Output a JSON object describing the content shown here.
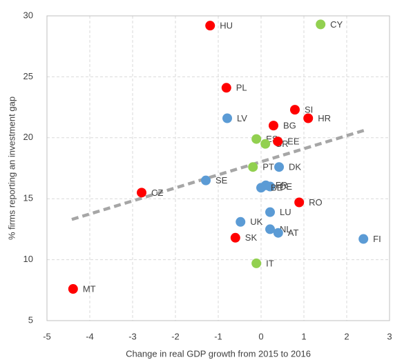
{
  "chart_data": {
    "type": "scatter",
    "x_label": "Change in real GDP growth from 2015 to 2016",
    "y_label": "% firms reporting an investment gap",
    "xlim": [
      -5,
      3
    ],
    "xticks": [
      -5,
      -4,
      -3,
      -2,
      -1,
      0,
      1,
      2,
      3
    ],
    "ylim": [
      5,
      30
    ],
    "yticks": [
      5,
      10,
      15,
      20,
      25,
      30
    ],
    "grid": true,
    "points": [
      {
        "label": "HU",
        "x": -1.19,
        "y": 29.2,
        "color": "#ff0000"
      },
      {
        "label": "CY",
        "x": 1.39,
        "y": 29.3,
        "color": "#92d050"
      },
      {
        "label": "PL",
        "x": -0.81,
        "y": 24.1,
        "color": "#ff0000"
      },
      {
        "label": "SI",
        "x": 0.79,
        "y": 22.3,
        "color": "#ff0000"
      },
      {
        "label": "HR",
        "x": 1.1,
        "y": 21.6,
        "color": "#ff0000"
      },
      {
        "label": "LV",
        "x": -0.79,
        "y": 21.6,
        "color": "#5b9bd5"
      },
      {
        "label": "BG",
        "x": 0.29,
        "y": 21.0,
        "color": "#ff0000"
      },
      {
        "label": "ES",
        "x": -0.11,
        "y": 19.9,
        "color": "#92d050"
      },
      {
        "label": "GR",
        "x": 0.1,
        "y": 19.5,
        "color": "#92d050"
      },
      {
        "label": "EE",
        "x": 0.39,
        "y": 19.7,
        "color": "#ff0000"
      },
      {
        "label": "DK",
        "x": 0.42,
        "y": 17.6,
        "color": "#5b9bd5"
      },
      {
        "label": "PT",
        "x": -0.19,
        "y": 17.6,
        "color": "#92d050"
      },
      {
        "label": "SE",
        "x": -1.29,
        "y": 16.5,
        "color": "#5b9bd5"
      },
      {
        "label": "CZ",
        "x": -2.79,
        "y": 15.5,
        "color": "#ff0000"
      },
      {
        "label": "FR",
        "x": 0.11,
        "y": 16.1,
        "color": "#5b9bd5"
      },
      {
        "label": "DE",
        "x": 0.21,
        "y": 16.0,
        "color": "#5b9bd5"
      },
      {
        "label": "BE",
        "x": 0.0,
        "y": 15.9,
        "color": "#5b9bd5"
      },
      {
        "label": "RO",
        "x": 0.89,
        "y": 14.7,
        "color": "#ff0000"
      },
      {
        "label": "LU",
        "x": 0.21,
        "y": 13.9,
        "color": "#5b9bd5"
      },
      {
        "label": "UK",
        "x": -0.48,
        "y": 13.1,
        "color": "#5b9bd5"
      },
      {
        "label": "NL",
        "x": 0.21,
        "y": 12.5,
        "color": "#5b9bd5"
      },
      {
        "label": "AT",
        "x": 0.4,
        "y": 12.2,
        "color": "#5b9bd5"
      },
      {
        "label": "SK",
        "x": -0.6,
        "y": 11.8,
        "color": "#ff0000"
      },
      {
        "label": "FI",
        "x": 2.39,
        "y": 11.7,
        "color": "#5b9bd5"
      },
      {
        "label": "IT",
        "x": -0.11,
        "y": 9.7,
        "color": "#92d050"
      },
      {
        "label": "MT",
        "x": -4.39,
        "y": 7.6,
        "color": "#ff0000"
      }
    ],
    "trendline": {
      "x": [
        -4.42,
        2.4
      ],
      "y": [
        13.3,
        20.6
      ],
      "color": "#a6a6a6"
    }
  }
}
